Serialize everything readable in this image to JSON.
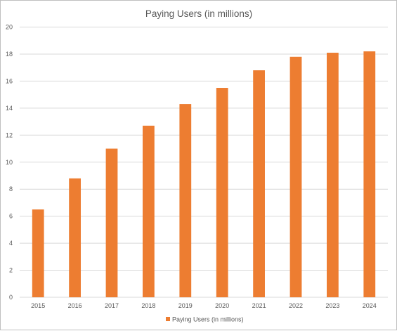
{
  "chart_data": {
    "type": "bar",
    "title": "Paying Users (in millions)",
    "xlabel": "",
    "ylabel": "",
    "categories": [
      "2015",
      "2016",
      "2017",
      "2018",
      "2019",
      "2020",
      "2021",
      "2022",
      "2023",
      "2024"
    ],
    "series": [
      {
        "name": "Paying Users (in millions)",
        "color": "#ed7d31",
        "values": [
          6.5,
          8.8,
          11.0,
          12.7,
          14.3,
          15.5,
          16.8,
          17.8,
          18.1,
          18.2
        ]
      }
    ],
    "ylim": [
      0,
      20
    ],
    "yticks": [
      "0",
      "2",
      "4",
      "6",
      "8",
      "10",
      "12",
      "14",
      "16",
      "18",
      "20"
    ],
    "grid": true,
    "legend_position": "bottom",
    "colors": {
      "gridline": "#d9d9d9",
      "text": "#595959",
      "border": "#bfbfbf"
    }
  }
}
